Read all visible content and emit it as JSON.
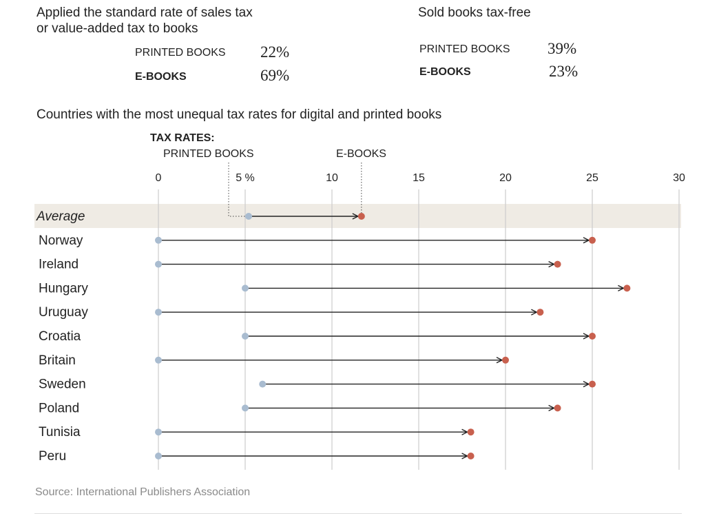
{
  "summary": {
    "standard_rate": {
      "title_line1": "Applied the standard rate of sales tax",
      "title_line2": "or value-added tax to books",
      "printed_label": "PRINTED BOOKS",
      "printed_value": "22%",
      "ebooks_label": "E-BOOKS",
      "ebooks_value": "69%"
    },
    "tax_free": {
      "title": "Sold books tax-free",
      "printed_label": "PRINTED BOOKS",
      "printed_value": "39%",
      "ebooks_label": "E-BOOKS",
      "ebooks_value": "23%"
    }
  },
  "chart_data": {
    "type": "dot-arrow",
    "title": "Countries with the most unequal tax rates for digital and printed books",
    "legend": {
      "heading": "TAX RATES:",
      "printed_label": "PRINTED BOOKS",
      "ebooks_label": "E-BOOKS"
    },
    "x_ticks": [
      0,
      5,
      10,
      15,
      20,
      25,
      30
    ],
    "x_tick_labels": [
      "0",
      "5 %",
      "10",
      "15",
      "20",
      "25",
      "30"
    ],
    "xlim": [
      0,
      30
    ],
    "grid": true,
    "series_colors": {
      "printed": "#a9bcd0",
      "ebooks": "#c8604e"
    },
    "rows": [
      {
        "country": "Average",
        "printed": 5.2,
        "ebooks": 11.7,
        "highlight": true
      },
      {
        "country": "Norway",
        "printed": 0,
        "ebooks": 25
      },
      {
        "country": "Ireland",
        "printed": 0,
        "ebooks": 23
      },
      {
        "country": "Hungary",
        "printed": 5,
        "ebooks": 27
      },
      {
        "country": "Uruguay",
        "printed": 0,
        "ebooks": 22
      },
      {
        "country": "Croatia",
        "printed": 5,
        "ebooks": 25
      },
      {
        "country": "Britain",
        "printed": 0,
        "ebooks": 20
      },
      {
        "country": "Sweden",
        "printed": 6,
        "ebooks": 25
      },
      {
        "country": "Poland",
        "printed": 5,
        "ebooks": 23
      },
      {
        "country": "Tunisia",
        "printed": 0,
        "ebooks": 18
      },
      {
        "country": "Peru",
        "printed": 0,
        "ebooks": 18
      }
    ],
    "source": "Source: International Publishers Association"
  }
}
